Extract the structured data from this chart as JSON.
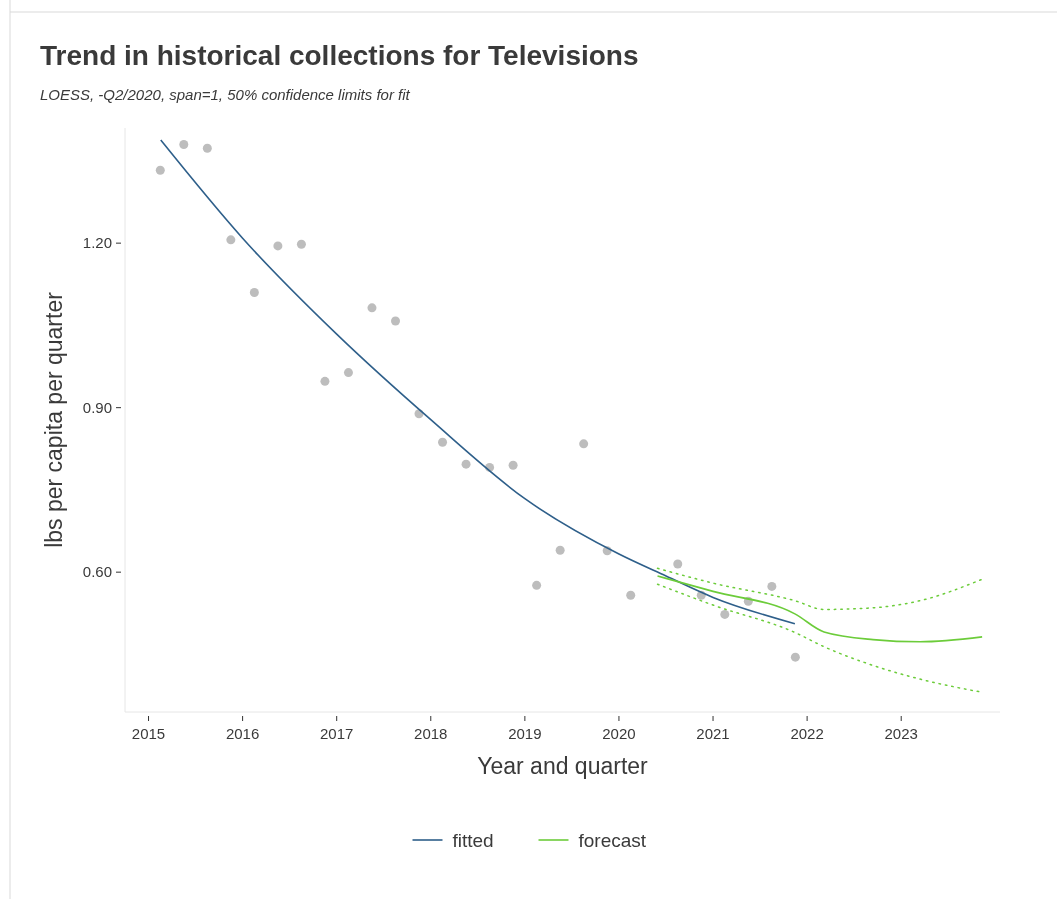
{
  "chart_data": {
    "type": "line",
    "title": "Trend in historical collections for Televisions",
    "subtitle": "LOESS, -Q2/2020, span=1, 50% confidence limits for fit",
    "xlabel": "Year and quarter",
    "ylabel": "lbs per capita per quarter",
    "xlim": [
      2014.75,
      2024.05
    ],
    "xticks": [
      2015,
      2016,
      2017,
      2018,
      2019,
      2020,
      2021,
      2022,
      2023
    ],
    "ylim": [
      0.345,
      1.41
    ],
    "yticks": [
      {
        "value": 0.6,
        "label": "0.60"
      },
      {
        "value": 0.9,
        "label": "0.90"
      },
      {
        "value": 1.2,
        "label": "1.20"
      }
    ],
    "grid": false,
    "legend": "bottom",
    "series": [
      {
        "type": "scatter",
        "color": "#bdbdbd",
        "marker": "circle",
        "x": [
          2015.125,
          2015.375,
          2015.625,
          2015.875,
          2016.125,
          2016.375,
          2016.625,
          2016.875,
          2017.125,
          2017.375,
          2017.625,
          2017.875,
          2018.125,
          2018.375,
          2018.625,
          2018.875,
          2019.125,
          2019.375,
          2019.625,
          2019.875,
          2020.125,
          2020.625,
          2020.875,
          2021.125,
          2021.375,
          2021.625,
          2021.875
        ],
        "values": [
          1.333,
          1.38,
          1.373,
          1.206,
          1.11,
          1.195,
          1.198,
          0.948,
          0.964,
          1.082,
          1.058,
          0.889,
          0.837,
          0.797,
          0.791,
          0.795,
          0.576,
          0.64,
          0.834,
          0.639,
          0.558,
          0.615,
          0.558,
          0.523,
          0.547,
          0.574,
          0.445
        ]
      },
      {
        "name": "fitted",
        "color": "#2e5f8a",
        "line_style": "solid",
        "x": [
          2015.13,
          2016,
          2017,
          2018,
          2019,
          2020,
          2020.5,
          2021,
          2021.87
        ],
        "values": [
          1.388,
          1.209,
          1.034,
          0.878,
          0.734,
          0.633,
          0.593,
          0.554,
          0.506
        ]
      },
      {
        "name": "forecast",
        "color": "#6ccc3a",
        "line_style": "solid",
        "x": [
          2020.41,
          2021,
          2021.87,
          2022.18,
          2022.7,
          2023.2,
          2023.86
        ],
        "values": [
          0.593,
          0.565,
          0.524,
          0.491,
          0.477,
          0.473,
          0.482
        ]
      },
      {
        "color": "#6ccc3a",
        "line_style": "dotted",
        "x": [
          2020.41,
          2021,
          2021.87,
          2022.18,
          2022.7,
          2023.2,
          2023.86
        ],
        "values": [
          0.607,
          0.58,
          0.548,
          0.532,
          0.535,
          0.548,
          0.587
        ]
      },
      {
        "color": "#6ccc3a",
        "line_style": "dotted",
        "x": [
          2020.41,
          2021,
          2021.87,
          2022.18,
          2022.7,
          2023.2,
          2023.86
        ],
        "values": [
          0.578,
          0.54,
          0.49,
          0.464,
          0.43,
          0.405,
          0.381
        ]
      }
    ]
  }
}
